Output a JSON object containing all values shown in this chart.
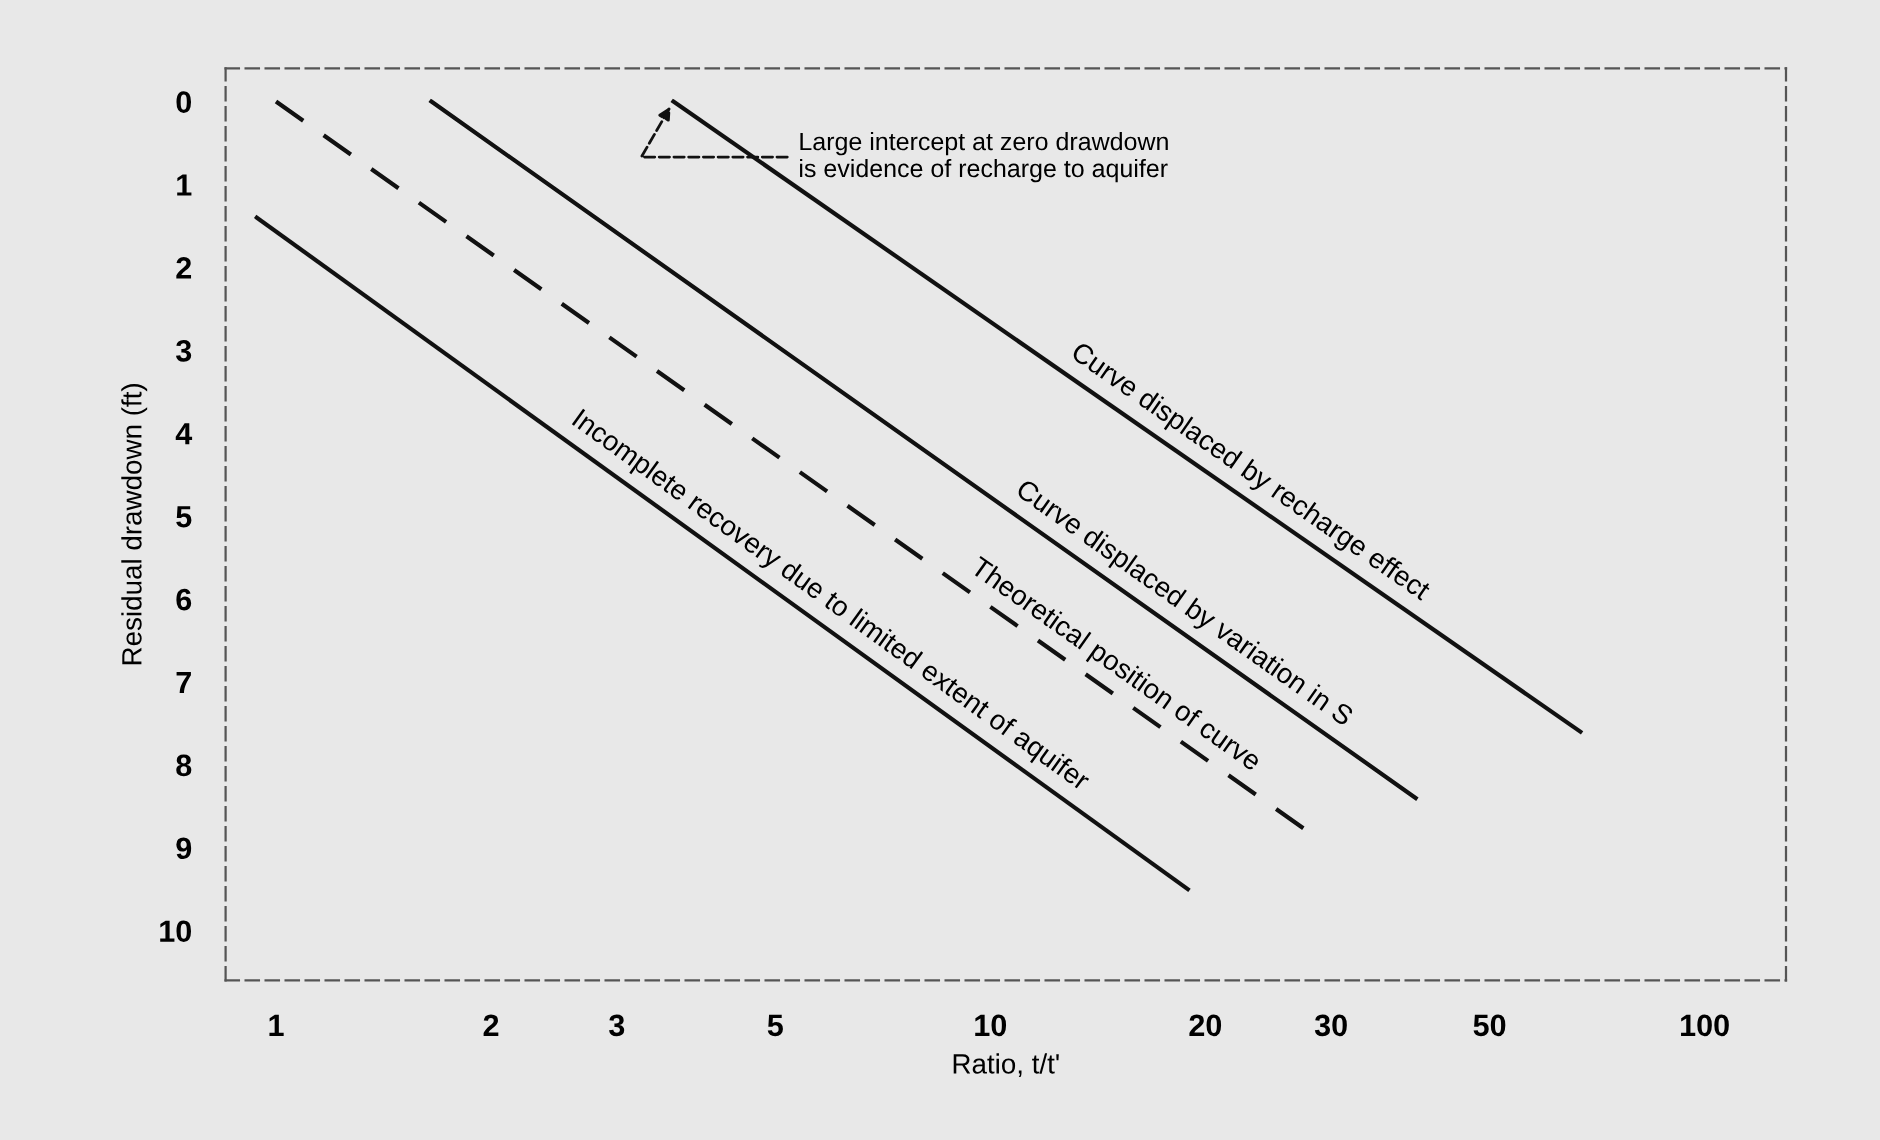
{
  "chart_data": {
    "type": "line",
    "xlabel": "Ratio, t/t'",
    "ylabel": "Residual drawdown (ft)",
    "log": "x",
    "xlim": [
      0.85,
      130
    ],
    "xticks": [
      1,
      2,
      3,
      5,
      10,
      20,
      30,
      50,
      100
    ],
    "ylim": [
      10.6,
      -0.4
    ],
    "yticks": [
      0,
      1,
      2,
      3,
      4,
      5,
      6,
      7,
      8,
      9,
      10
    ],
    "grid": false,
    "legend": false,
    "marker": "none",
    "series": [
      {
        "name": "Incomplete recovery due to limited extent of aquifer",
        "color": "#111111",
        "line_style": "solid",
        "x": [
          0.94,
          18.9
        ],
        "values": [
          1.4,
          9.5
        ]
      },
      {
        "name": "Theoretical position of curve",
        "color": "#111111",
        "line_style": "dashed",
        "x": [
          1,
          27.8
        ],
        "values": [
          0,
          8.8
        ]
      },
      {
        "name": "Curve displaced by variation in S",
        "color": "#111111",
        "line_style": "solid",
        "x": [
          1.65,
          39.4
        ],
        "values": [
          0,
          8.4
        ]
      },
      {
        "name": "Curve displaced by recharge effect",
        "color": "#111111",
        "line_style": "solid",
        "x": [
          3.6,
          67
        ],
        "values": [
          0,
          7.6
        ]
      }
    ],
    "annotations": [
      {
        "text": "Large intercept at zero drawdown\nis evidence of recharge to aquifer",
        "x": 3.6,
        "y": 0
      }
    ]
  }
}
